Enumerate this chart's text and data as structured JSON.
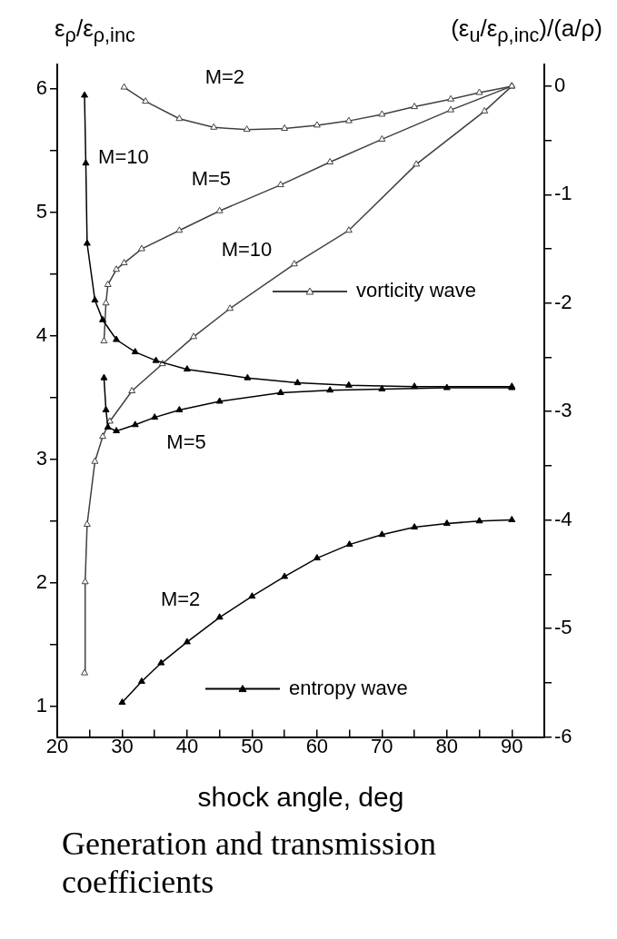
{
  "chart_data": {
    "type": "line",
    "title": "Generation and transmission coefficients",
    "xlabel": "shock angle, deg",
    "ylabel": "ε$_{ρ}$/ε$_{ρ,inc}$",
    "y2label": "(ε$_{u}$/ε$_{ρ,inc}$)/(a/ρ)",
    "xlim": [
      20,
      95
    ],
    "xticks": [
      20,
      {
        "value": 25,
        "label": null
      },
      30,
      {
        "value": 35,
        "label": null
      },
      40,
      {
        "value": 45,
        "label": null
      },
      50,
      {
        "value": 55,
        "label": null
      },
      60,
      {
        "value": 65,
        "label": null
      },
      70,
      {
        "value": 75,
        "label": null
      },
      80,
      {
        "value": 85,
        "label": null
      },
      90
    ],
    "ylim": [
      0.75,
      6.2
    ],
    "yticks": [
      1,
      {
        "value": 1.5,
        "label": null
      },
      2,
      {
        "value": 2.5,
        "label": null
      },
      3,
      {
        "value": 3.5,
        "label": null
      },
      4,
      {
        "value": 4.5,
        "label": null
      },
      5,
      {
        "value": 5.5,
        "label": null
      },
      6
    ],
    "y2lim": [
      -6,
      0.2
    ],
    "y2ticks": [
      -6,
      {
        "value": -5.5,
        "label": null
      },
      -5,
      {
        "value": -4.5,
        "label": null
      },
      -4,
      {
        "value": -3.5,
        "label": null
      },
      -3,
      {
        "value": -2.5,
        "label": null
      },
      -2,
      {
        "value": -1.5,
        "label": null
      },
      -1,
      {
        "value": -0.5,
        "label": null
      },
      0
    ],
    "grid": false,
    "legend": "right",
    "marker": "triangle",
    "series": [
      {
        "name": "entropy wave",
        "color": "#000000",
        "x": [
          30,
          33,
          36,
          40,
          45,
          50,
          55,
          60,
          65,
          70,
          75,
          80,
          85,
          90
        ],
        "values": [
          1.03,
          1.2,
          1.35,
          1.52,
          1.72,
          1.89,
          2.05,
          2.2,
          2.31,
          2.39,
          2.45,
          2.48,
          2.5,
          2.51
        ]
      },
      {
        "color": "#000000",
        "x": [
          27.2,
          27.5,
          27.8,
          29.1,
          32,
          35,
          38.8,
          45,
          54.4,
          62,
          70,
          80,
          90
        ],
        "values": [
          3.66,
          3.4,
          3.26,
          3.23,
          3.28,
          3.34,
          3.4,
          3.47,
          3.54,
          3.56,
          3.57,
          3.58,
          3.58
        ]
      },
      {
        "color": "#000000",
        "x": [
          24.2,
          24.4,
          24.6,
          25.8,
          27,
          29.1,
          32,
          35.2,
          40,
          49.3,
          57,
          64.9,
          75,
          90
        ],
        "values": [
          5.95,
          5.4,
          4.75,
          4.29,
          4.13,
          3.97,
          3.87,
          3.8,
          3.73,
          3.66,
          3.62,
          3.6,
          3.59,
          3.59
        ]
      },
      {
        "name": "vorticity wave",
        "color": "#404040",
        "axis": "y2",
        "x": [
          30.3,
          33.6,
          38.8,
          44.1,
          49.2,
          55,
          60,
          64.9,
          70,
          75,
          80.6,
          85,
          90
        ],
        "values": [
          -0.01,
          -0.14,
          -0.3,
          -0.38,
          -0.4,
          -0.39,
          -0.36,
          -0.32,
          -0.26,
          -0.19,
          -0.12,
          -0.06,
          0
        ]
      },
      {
        "color": "#404040",
        "axis": "y2",
        "x": [
          27.2,
          27.5,
          27.8,
          29.1,
          30.3,
          33,
          38.8,
          45,
          54.4,
          62,
          70,
          80.6,
          90
        ],
        "values": [
          -2.35,
          -2.0,
          -1.83,
          -1.69,
          -1.63,
          -1.5,
          -1.33,
          -1.15,
          -0.91,
          -0.7,
          -0.49,
          -0.22,
          0
        ]
      },
      {
        "color": "#404040",
        "axis": "y2",
        "x": [
          24.2,
          24.3,
          24.6,
          25.8,
          27,
          28.1,
          31.5,
          36.2,
          41,
          46.6,
          56.5,
          64.9,
          75.3,
          85.8,
          90
        ],
        "values": [
          -5.41,
          -4.57,
          -4.04,
          -3.46,
          -3.23,
          -3.09,
          -2.81,
          -2.56,
          -2.31,
          -2.05,
          -1.64,
          -1.33,
          -0.72,
          -0.23,
          0
        ]
      }
    ],
    "annotations": [
      "M=2",
      "M=10",
      "M=5",
      "M=10",
      "M=5",
      "M=2"
    ]
  }
}
